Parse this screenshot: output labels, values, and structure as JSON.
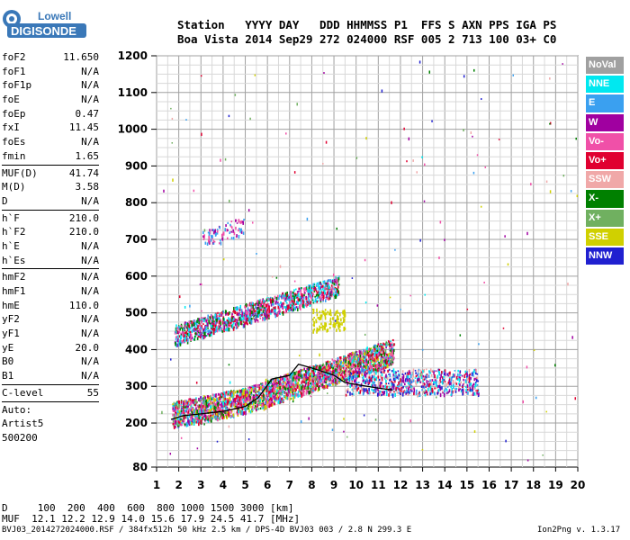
{
  "logo": {
    "line1": "Lowell",
    "line2": "DIGISONDE"
  },
  "header": {
    "labels": "Station   YYYY DAY   DDD HHMMSS P1  FFS S AXN PPS IGA PS",
    "values": "Boa Vista 2014 Sep29 272 024000 RSF 005 2 713 100 03+ C0"
  },
  "params": {
    "group1": [
      {
        "name": "foF2",
        "value": "11.650"
      },
      {
        "name": "foF1",
        "value": "N/A"
      },
      {
        "name": "foF1p",
        "value": "N/A"
      },
      {
        "name": "foE",
        "value": "N/A"
      },
      {
        "name": "foEp",
        "value": "0.47"
      },
      {
        "name": "fxI",
        "value": "11.45"
      },
      {
        "name": "foEs",
        "value": "N/A"
      },
      {
        "name": "fmin",
        "value": "1.65"
      }
    ],
    "group2": [
      {
        "name": "MUF(D)",
        "value": "41.74"
      },
      {
        "name": "M(D)",
        "value": "3.58"
      },
      {
        "name": "D",
        "value": "N/A"
      }
    ],
    "group3": [
      {
        "name": "h`F",
        "value": "210.0"
      },
      {
        "name": "h`F2",
        "value": "210.0"
      },
      {
        "name": "h`E",
        "value": "N/A"
      },
      {
        "name": "h`Es",
        "value": "N/A"
      }
    ],
    "group4": [
      {
        "name": "hmF2",
        "value": "N/A"
      },
      {
        "name": "hmF1",
        "value": "N/A"
      },
      {
        "name": "hmE",
        "value": "110.0"
      },
      {
        "name": "yF2",
        "value": "N/A"
      },
      {
        "name": "yF1",
        "value": "N/A"
      },
      {
        "name": "yE",
        "value": "20.0"
      },
      {
        "name": "B0",
        "value": "N/A"
      },
      {
        "name": "B1",
        "value": "N/A"
      }
    ],
    "clevel": {
      "name": "C-level",
      "value": "55"
    },
    "auto": [
      "Auto:",
      "Artist5",
      "500200"
    ]
  },
  "legend": [
    {
      "label": "NoVal",
      "color": "#a0a0a0"
    },
    {
      "label": "NNE",
      "color": "#00e8f0"
    },
    {
      "label": "E",
      "color": "#3aa0f0"
    },
    {
      "label": "W",
      "color": "#a000a0"
    },
    {
      "label": "Vo-",
      "color": "#f050a8"
    },
    {
      "label": "Vo+",
      "color": "#e00030"
    },
    {
      "label": "SSW",
      "color": "#f0a8a8"
    },
    {
      "label": "X-",
      "color": "#008000"
    },
    {
      "label": "X+",
      "color": "#70b060"
    },
    {
      "label": "SSE",
      "color": "#d0d000"
    },
    {
      "label": "NNW",
      "color": "#2020d0"
    }
  ],
  "chart_data": {
    "type": "scatter",
    "xlim": [
      1,
      20
    ],
    "ylim": [
      80,
      1200
    ],
    "xticks": [
      "1",
      "2",
      "3",
      "4",
      "5",
      "6",
      "7",
      "8",
      "9",
      "10",
      "11",
      "12",
      "13",
      "14",
      "15",
      "16",
      "17",
      "18",
      "19",
      "20"
    ],
    "yticks": [
      "80",
      "200",
      "300",
      "400",
      "500",
      "600",
      "700",
      "800",
      "900",
      "1000",
      "1100",
      "1200"
    ],
    "grid": true,
    "trace": {
      "x": [
        1.65,
        2.2,
        3.0,
        4.0,
        5.0,
        5.6,
        6.2,
        7.0,
        7.4,
        8.0,
        8.5,
        9.0,
        9.5,
        10.0,
        10.5,
        11.0,
        11.65
      ],
      "y": [
        210,
        220,
        225,
        232,
        245,
        270,
        320,
        330,
        360,
        350,
        340,
        330,
        310,
        305,
        300,
        295,
        290
      ]
    }
  },
  "footer": {
    "d_row": "D     100  200  400  600  800 1000 1500 3000 [km]",
    "muf_row": "MUF  12.1 12.2 12.9 14.0 15.6 17.9 24.5 41.7 [MHz]",
    "info": "BVJ03_2014272024000.RSF / 384fx512h 50 kHz 2.5 km / DPS-4D BVJ03 003 / 2.8 N 299.3 E",
    "version": "Ion2Png v. 1.3.17"
  }
}
